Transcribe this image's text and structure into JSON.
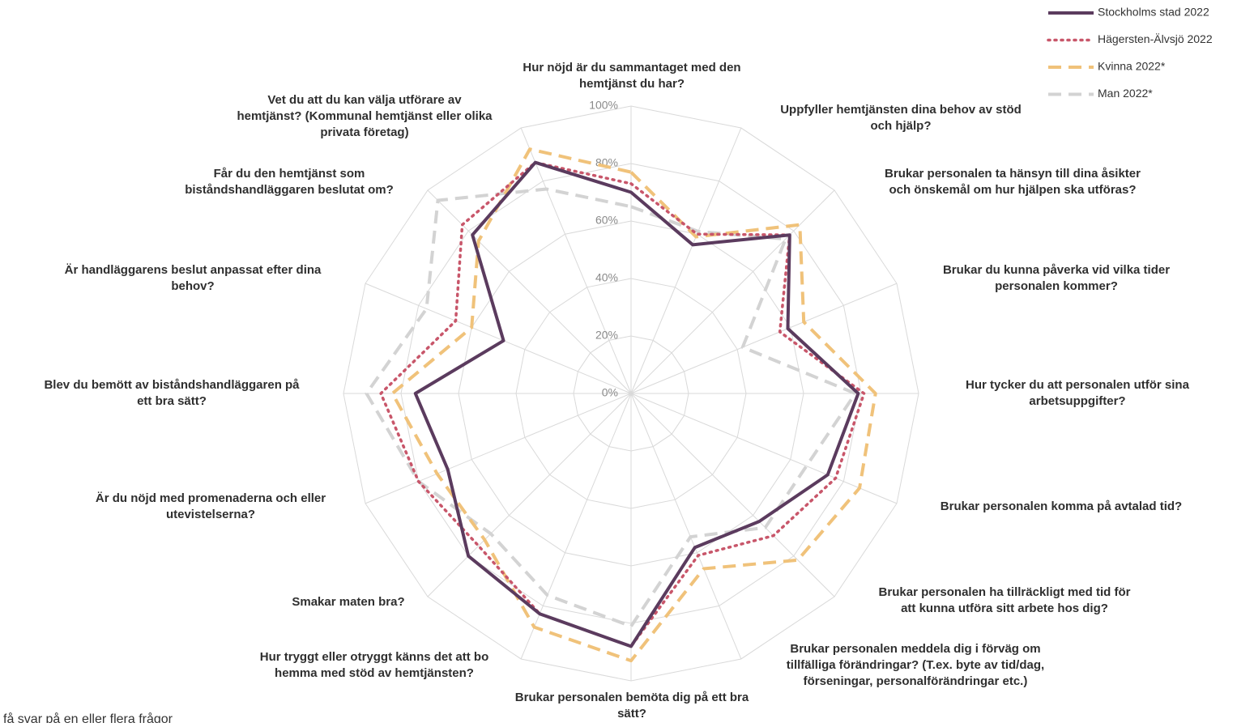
{
  "chart_data": {
    "type": "radar",
    "categories": [
      "Hur nöjd är du sammantaget med den\nhemtjänst du har?",
      "Uppfyller hemtjänsten dina behov av stöd\noch hjälp?",
      "Brukar personalen ta hänsyn till dina åsikter\noch önskemål om hur hjälpen ska utföras?",
      "Brukar du kunna påverka vid vilka tider\npersonalen kommer?",
      "Hur tycker du att personalen utför sina\narbetsuppgifter?",
      "Brukar personalen komma på avtalad tid?",
      "Brukar personalen ha tillräckligt med tid för\natt kunna utföra sitt arbete hos dig?",
      "Brukar personalen meddela dig i förväg om\ntillfälliga förändringar? (T.ex. byte av tid/dag,\nförseningar, personalförändringar etc.)",
      "Brukar personalen bemöta dig på ett bra\nsätt?",
      "Hur tryggt eller otryggt känns det att bo\nhemma med stöd av hemtjänsten?",
      "Smakar maten bra?",
      "Är du nöjd med promenaderna och eller\nutevistelserna?",
      "Blev du bemött av biståndshandläggaren på\nett bra sätt?",
      "Är handläggarens beslut anpassat efter dina\nbehov?",
      "Får du den hemtjänst som\nbiståndshandläggaren beslutat om?",
      "Vet du att du kan välja utförare av\nhemtjänst? (Kommunal hemtjänst eller olika\nprivata företag)"
    ],
    "series": [
      {
        "name": "Stockholms stad 2022",
        "color": "#5b3b5e",
        "dash": "solid",
        "values": [
          70,
          56,
          78,
          59,
          79,
          74,
          63,
          58,
          88,
          83,
          80,
          69,
          75,
          48,
          78,
          87
        ]
      },
      {
        "name": "Hägersten-Älvsjö 2022",
        "color": "#c8566a",
        "dash": "dotted",
        "values": [
          73,
          60,
          78,
          56,
          81,
          77,
          70,
          61,
          88,
          83,
          75,
          80,
          87,
          66,
          83,
          87
        ]
      },
      {
        "name": "Kvinna 2022*",
        "color": "#f0c27a",
        "dash": "dashed",
        "values": [
          77,
          59,
          83,
          65,
          85,
          86,
          82,
          66,
          93,
          88,
          72,
          73,
          83,
          60,
          75,
          92
        ]
      },
      {
        "name": "Man 2022*",
        "color": "#d3d3d3",
        "dash": "dashed",
        "values": [
          65,
          61,
          76,
          42,
          78,
          66,
          66,
          54,
          81,
          76,
          69,
          80,
          92,
          77,
          95,
          77
        ]
      }
    ],
    "rlim": [
      0,
      100
    ],
    "rticks": [
      {
        "value": 0,
        "label": "0%"
      },
      {
        "value": 20,
        "label": "20%"
      },
      {
        "value": 40,
        "label": "40%"
      },
      {
        "value": 60,
        "label": "60%"
      },
      {
        "value": 80,
        "label": "80%"
      },
      {
        "value": 100,
        "label": "100%"
      }
    ],
    "legend": "top-right",
    "footnote": "få svar på en eller flera frågor"
  }
}
